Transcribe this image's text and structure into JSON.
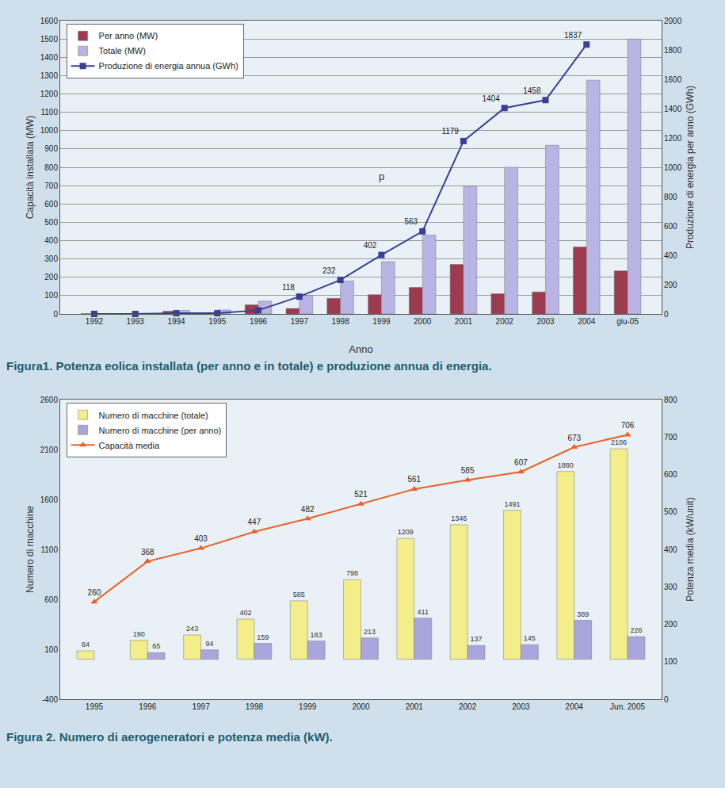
{
  "chart_data": [
    {
      "type": "bar",
      "title": "Figura1. Potenza eolica installata (per anno e in totale) e produzione annua di energia.",
      "x_label": "Anno",
      "y_label": "Capacità installata (MW)",
      "y2_label": "Produzione di energia per anno (GWh)",
      "categories": [
        "1992",
        "1993",
        "1994",
        "1995",
        "1996",
        "1997",
        "1998",
        "1999",
        "2000",
        "2001",
        "2002",
        "2003",
        "2004",
        "giu-05"
      ],
      "series": [
        {
          "name": "Per anno (MW)",
          "color": "#9c3a4e",
          "values": [
            2,
            1,
            15,
            5,
            50,
            30,
            85,
            105,
            145,
            270,
            110,
            120,
            365,
            235
          ]
        },
        {
          "name": "Totale (MW)",
          "color": "#b8b4e4",
          "values": [
            2,
            3,
            20,
            22,
            70,
            100,
            180,
            285,
            430,
            695,
            800,
            920,
            1275,
            1500
          ]
        },
        {
          "name": "Produzione di energia annua (GWh)",
          "type": "line",
          "axis": "y2",
          "color": "#3a3f96",
          "marker": "square",
          "line_style": "solid",
          "data_labels": true,
          "values": [
            0,
            0,
            5,
            5,
            25,
            118,
            232,
            402,
            563,
            1179,
            1404,
            1458,
            1837,
            null
          ],
          "value_labels": [
            null,
            null,
            null,
            null,
            null,
            "118",
            "232",
            "402",
            "563",
            "1179",
            "1404",
            "1458",
            "1837",
            null
          ]
        }
      ],
      "ylim": [
        0,
        1600
      ],
      "yticks": [
        0,
        100,
        200,
        300,
        400,
        500,
        600,
        700,
        800,
        900,
        1000,
        1100,
        1200,
        1300,
        1400,
        1500,
        1600
      ],
      "y2lim": [
        0,
        2000
      ],
      "y2ticks": [
        0,
        200,
        400,
        600,
        800,
        1000,
        1200,
        1400,
        1600,
        1800,
        2000
      ],
      "grid": true,
      "legend": "top-left",
      "annotations": [
        {
          "text": "p",
          "x": "1999",
          "y": 750
        }
      ]
    },
    {
      "type": "bar",
      "title": "Figura 2. Numero di aerogeneratori e potenza media (kW).",
      "y_label": "Numero di macchine",
      "y2_label": "Potenza media (kW/unit)",
      "categories": [
        "1995",
        "1996",
        "1997",
        "1998",
        "1999",
        "2000",
        "2001",
        "2002",
        "2003",
        "2004",
        "Jun. 2005"
      ],
      "series": [
        {
          "name": "Numero di macchine (totale)",
          "color": "#f3ee8a",
          "data_labels": true,
          "values": [
            84,
            190,
            243,
            402,
            585,
            798,
            1209,
            1346,
            1491,
            1880,
            2106
          ]
        },
        {
          "name": "Numero di macchine (per anno)",
          "color": "#a8a6dc",
          "data_labels": true,
          "values": [
            null,
            65,
            94,
            159,
            183,
            213,
            411,
            137,
            145,
            389,
            226
          ]
        },
        {
          "name": "Capacità media",
          "type": "line",
          "axis": "y2",
          "color": "#e8622a",
          "marker": "triangle-up",
          "line_style": "solid",
          "data_labels": true,
          "values": [
            260,
            368,
            403,
            447,
            482,
            521,
            561,
            585,
            607,
            673,
            706
          ]
        }
      ],
      "ylim": [
        -400,
        2600
      ],
      "yticks": [
        -400,
        100,
        600,
        1100,
        1600,
        2100,
        2600
      ],
      "y2lim": [
        0,
        800
      ],
      "y2ticks": [
        0,
        100,
        200,
        300,
        400,
        500,
        600,
        700,
        800
      ],
      "grid": false,
      "legend": "top-left"
    }
  ]
}
